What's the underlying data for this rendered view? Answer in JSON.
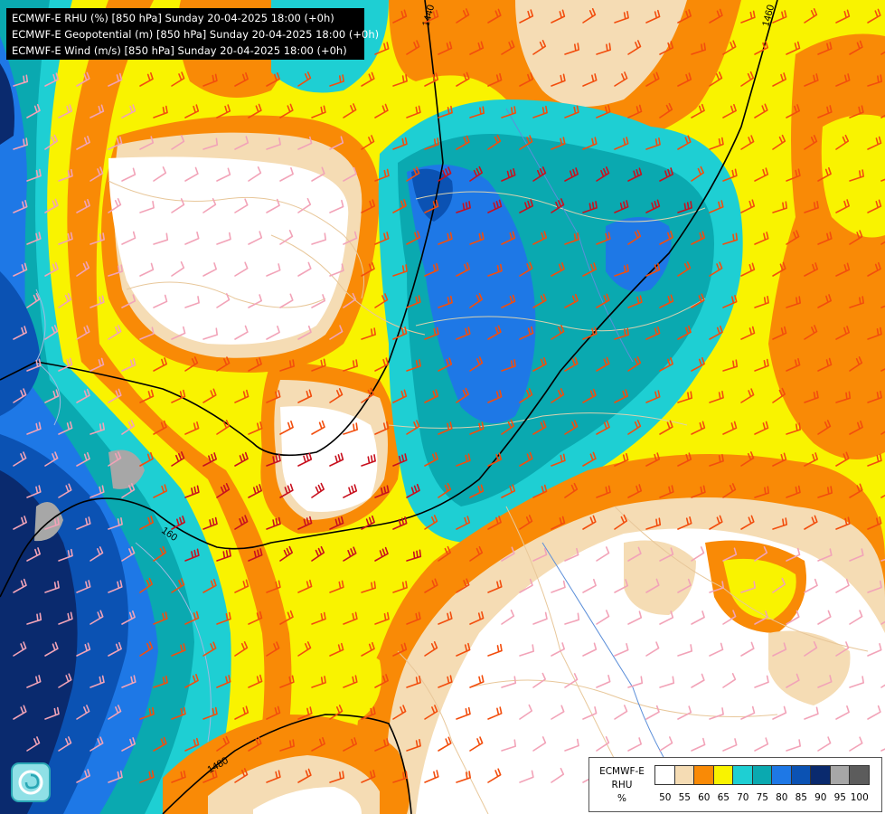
{
  "header": {
    "line1": "ECMWF-E RHU (%) [850 hPa] Sunday 20-04-2025 18:00 (+0h)",
    "line2": "ECMWF-E Geopotential (m) [850 hPa] Sunday 20-04-2025 18:00 (+0h)",
    "line3": "ECMWF-E Wind (m/s) [850 hPa] Sunday 20-04-2025 18:00 (+0h)"
  },
  "contours": {
    "label_1440": "1440",
    "label_1460": "1460",
    "label_1460b": "160",
    "label_1480": "1480"
  },
  "legend": {
    "title_line1": "ECMWF-E",
    "title_line2": "RHU",
    "title_line3": "%",
    "ticks": [
      "50",
      "55",
      "60",
      "65",
      "70",
      "75",
      "80",
      "85",
      "90",
      "95",
      "100"
    ],
    "colors": [
      "#ffffff",
      "#f5dcb4",
      "#f98a06",
      "#f9f300",
      "#1ecfd3",
      "#0aa9b0",
      "#1e78e6",
      "#0b52b3",
      "#0a2a6e",
      "#a7a7a7",
      "#5c5c5c"
    ]
  },
  "palette": {
    "white": "#ffffff",
    "tan": "#f5dcb4",
    "orange": "#f98a06",
    "yellow": "#f9f300",
    "cyan": "#1ecfd3",
    "teal": "#0aa9b0",
    "blue": "#1e78e6",
    "darkblue": "#0b52b3",
    "navy": "#0a2a6e",
    "grey": "#a7a7a7"
  },
  "icons": {
    "logo": "swirl-logo-icon"
  }
}
